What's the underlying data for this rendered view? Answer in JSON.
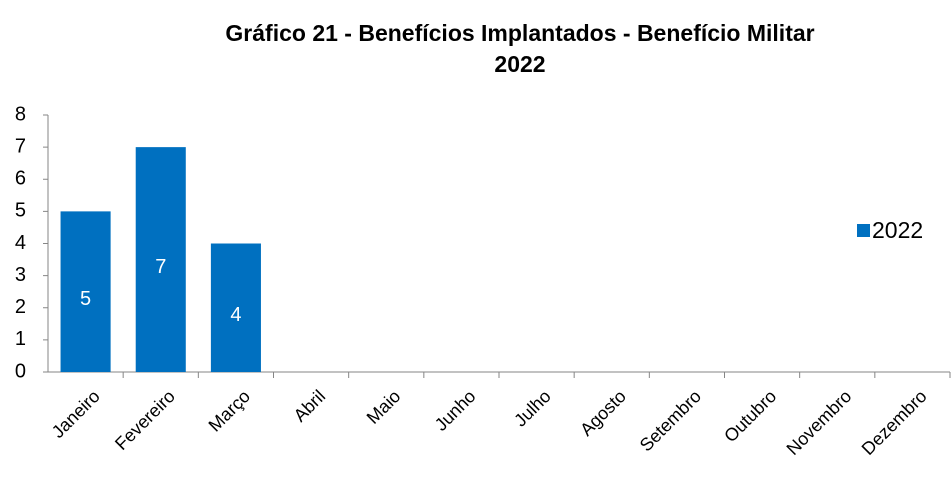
{
  "chart_data": {
    "type": "bar",
    "title": [
      "Gráfico 21 - Benefícios Implantados - Benefício Militar",
      "2022"
    ],
    "categories": [
      "Janeiro",
      "Fevereiro",
      "Março",
      "Abril",
      "Maio",
      "Junho",
      "Julho",
      "Agosto",
      "Setembro",
      "Outubro",
      "Novembro",
      "Dezembro"
    ],
    "series": [
      {
        "name": "2022",
        "color": "#0070c0",
        "values": [
          5,
          7,
          4,
          null,
          null,
          null,
          null,
          null,
          null,
          null,
          null,
          null
        ]
      }
    ],
    "ylim": [
      0,
      8
    ],
    "yticks": [
      0,
      1,
      2,
      3,
      4,
      5,
      6,
      7,
      8
    ],
    "grid": false,
    "legend": "right"
  }
}
